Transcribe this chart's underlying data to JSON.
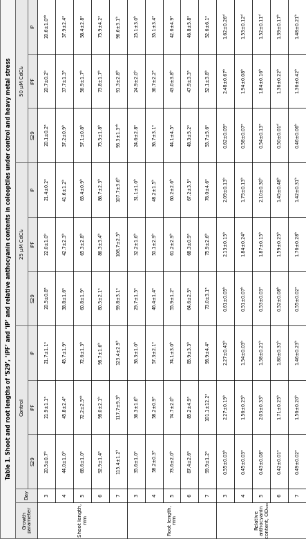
{
  "title": "Table 1. Shoot and root lengths of ‘S29’, ‘iPF’ and ‘iP’ and relative anthocyanin contents in coleoptiles under control and heavy metal stress",
  "col_groups": [
    "Control",
    "25 µM CdCl₂",
    "50 µM CdCl₂"
  ],
  "sub_headers": [
    "S29",
    "iPF",
    "iP"
  ],
  "data": [
    {
      "param": "Shoot length,\nmm",
      "rows": [
        {
          "day": 3,
          "vals": [
            "20.5±0.7ᵇ",
            "21.9±1.1ᵃ",
            "21.7±1.1ᵃ",
            "20.5±0.8ᵃ",
            "22.0±1.0ᵇ",
            "21.4±0.2ᵃ",
            "20.1±0.2ᵃ",
            "20.7±0.2ᵇ",
            "20.6±1.0ᵃᵇ"
          ]
        },
        {
          "day": 4,
          "vals": [
            "44.0±1.0ᵇ",
            "45.8±2.4ᵃ",
            "45.7±1.9ᵃ",
            "38.8±1.6ᵃ",
            "42.7±2.3ᵇ",
            "41.6±1.2ᵇ",
            "37.2±0.9ᵇ",
            "37.7±1.3ᵃ",
            "37.9±2.4ᵃ"
          ]
        },
        {
          "day": 5,
          "vals": [
            "68.6±1.0ᵃ",
            "72.2±2.5ᵃᵇ",
            "72.6±1.3ᵇ",
            "60.8±1.9ᵃ",
            "65.3±2.8ᵇ",
            "65.4±0.9ᵇ",
            "57.1±0.8ᵇ",
            "56.9±1.7ᵇ",
            "58.4±2.8ᵃ"
          ]
        },
        {
          "day": 6,
          "vals": [
            "92.9±1.4ᵃ",
            "98.0±2.1ᵇ",
            "98.7±1.6ᵇ",
            "80.5±2.1ᵃ",
            "86.3±3.4ᵇ",
            "86.7±2.3ᵇ",
            "75.5±1.8ᵇ",
            "73.8±1.7ᵇ",
            "75.9±4.2ᵃ"
          ]
        },
        {
          "day": 7,
          "vals": [
            "115.4±1.2ᵇ",
            "117.7±9.3ᵇ",
            "123.4±2.9ᵇ",
            "99.8±3.1ᵃ",
            "108.7±2.5ᵇ",
            "107.7±3.6ᵇ",
            "93.3±1.3ᵃᵇ",
            "91.3±2.8ᵇ",
            "96.6±3.1ᵇ"
          ]
        }
      ]
    },
    {
      "param": "Root length,\nmm",
      "rows": [
        {
          "day": 3,
          "vals": [
            "35.6±1.0ᵃ",
            "36.3±1.6ᵇ",
            "36.3±1.0ᵇ",
            "29.7±1.5ᵃ",
            "32.2±1.6ᵇ",
            "31.1±1.0ᵇ",
            "24.6±2.8ᵃ",
            "24.9±2.0ᵇ",
            "25.1±3.0ᵇ"
          ]
        },
        {
          "day": 4,
          "vals": [
            "58.2±0.3ᵃ",
            "58.2±0.9ᵃ",
            "57.3±2.1ᵃ",
            "46.4±1.4ᵃ",
            "50.1±2.9ᵇ",
            "48.2±1.5ᵇ",
            "36.7±3.1ᵃ",
            "36.7±2.2ᵃ",
            "35.1±3.4ᵃ"
          ]
        },
        {
          "day": 5,
          "vals": [
            "73.6±2.0ᵇ",
            "74.7±2.0ᵇ",
            "74.1±3.0ᵇ",
            "55.9±1.2ᵃ",
            "61.2±2.9ᵇ",
            "60.2±2.6ᵇ",
            "44.1±4.5ᵃ",
            "43.0±3.8ᵇ",
            "42.6±4.9ᵃ"
          ]
        },
        {
          "day": 6,
          "vals": [
            "87.4±2.6ᵃ",
            "85.2±4.9ᵃ",
            "85.9±3.3ᵇ",
            "64.6±2.5ᵃ",
            "68.3±0.9ᵃ",
            "67.2±3.5ᵃ",
            "48.3±5.2ᵃ",
            "47.9±3.3ᵃ",
            "46.8±5.8ᵃ"
          ]
        },
        {
          "day": 7,
          "vals": [
            "99.9±1.2ᵃ",
            "101.1±12.2ᵃ",
            "98.9±4.4ᵃ",
            "73.0±3.1ᵃ",
            "75.9±2.6ᵇ",
            "76.0±4.6ᵃ",
            "53.7±5.6ᵃ",
            "52.1±3.8ᵇ",
            "52.6±6.1ᵃ"
          ]
        }
      ]
    },
    {
      "param": "Relative\nanthocyanin\ncontent, OD₅₃₀",
      "rows": [
        {
          "day": 3,
          "vals": [
            "0.55±0.03ᵇ",
            "2.27±0.19ᵇ",
            "2.27±0.43ᵇ",
            "0.61±0.05ᵇ",
            "2.13±0.15ᵇ",
            "2.09±0.13ᵇ",
            "0.62±0.09ᵃ",
            "2.48±0.67ᵇ",
            "1.62±0.26ᵈ"
          ]
        },
        {
          "day": 4,
          "vals": [
            "0.45±0.03ᵃ",
            "1.56±0.25ᵇ",
            "1.54±0.03ᵇ",
            "0.51±0.07ᵇ",
            "1.84±0.24ᵇ",
            "1.75±0.13ᵇ",
            "0.58±0.07ᵃ",
            "1.94±0.08ᵇ",
            "1.53±0.12ᵈ"
          ]
        },
        {
          "day": 5,
          "vals": [
            "0.43±0.08ᵃ",
            "2.03±0.33ᵇ",
            "1.58±0.21ᵇ",
            "0.53±0.03ᵃ",
            "1.87±0.15ᵇ",
            "2.10±0.30ᵇ",
            "0.54±0.13ᵃ",
            "1.84±0.16ᵇ",
            "1.52±0.11ᵈ"
          ]
        },
        {
          "day": 6,
          "vals": [
            "0.42±0.01ᵃ",
            "1.71±0.25ᵇ",
            "1.80±0.31ᵇ",
            "0.52±0.08ᵇ",
            "1.59±0.25ᵇ",
            "1.45±0.48ᵇ",
            "0.50±0.01ᵈ",
            "1.36±0.22ᵇ",
            "1.39±0.17ᵇ"
          ]
        },
        {
          "day": 7,
          "vals": [
            "0.49±0.02ᵃ",
            "1.56±0.20ᵇ",
            "1.46±0.23ᵇ",
            "0.55±0.02ᵃ",
            "1.76±0.28ᵇ",
            "1.42±0.31ᵇ",
            "0.46±0.06ᵇ",
            "1.36±0.42ᵇ",
            "1.48±0.21ᵇ"
          ]
        }
      ]
    }
  ],
  "bg_color": "#ffffff",
  "line_color": "#000000",
  "font_size": 5.2
}
